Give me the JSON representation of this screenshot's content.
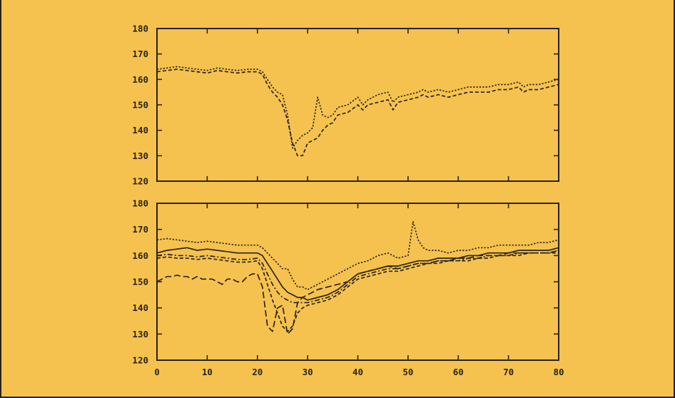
{
  "chart_data": [
    {
      "type": "line",
      "title": "",
      "xlabel": "",
      "ylabel": "",
      "xlim": [
        0,
        80
      ],
      "ylim": [
        120,
        180
      ],
      "yticks": [
        "120",
        "130",
        "140",
        "150",
        "160",
        "170",
        "180"
      ],
      "xticks": [],
      "grid": false,
      "legend": "none",
      "series": [
        {
          "dash": "dotted",
          "x": [
            0,
            2,
            4,
            6,
            8,
            10,
            12,
            14,
            16,
            18,
            20,
            21,
            22,
            23,
            24,
            25,
            26,
            27,
            28,
            29,
            30,
            31,
            32,
            33,
            34,
            35,
            36,
            38,
            40,
            41,
            42,
            44,
            46,
            47,
            48,
            50,
            52,
            53,
            54,
            56,
            58,
            60,
            62,
            64,
            66,
            68,
            70,
            72,
            73,
            74,
            76,
            78,
            80
          ],
          "y": [
            164,
            164.5,
            165,
            164.5,
            164,
            163.5,
            164.5,
            164,
            163.5,
            164,
            164,
            163,
            160,
            157,
            155,
            154,
            146,
            133,
            136,
            138,
            139,
            141,
            153,
            146,
            145,
            146,
            149,
            150,
            153,
            150,
            152,
            154,
            155,
            151,
            153,
            154,
            155,
            156,
            155,
            156,
            155,
            156,
            157,
            157,
            157,
            158,
            158,
            159,
            157,
            158,
            158,
            159,
            160
          ]
        },
        {
          "dash": "dashed",
          "x": [
            0,
            2,
            4,
            6,
            8,
            10,
            12,
            14,
            16,
            18,
            20,
            21,
            22,
            23,
            24,
            25,
            26,
            27,
            28,
            29,
            30,
            31,
            32,
            33,
            34,
            35,
            36,
            38,
            40,
            41,
            42,
            44,
            46,
            47,
            48,
            50,
            52,
            53,
            54,
            56,
            58,
            60,
            62,
            64,
            66,
            68,
            70,
            72,
            73,
            74,
            76,
            78,
            80
          ],
          "y": [
            163,
            163.5,
            164,
            163.5,
            163,
            162.5,
            163.5,
            163,
            162.5,
            163,
            163,
            162,
            158,
            155,
            153,
            150,
            144,
            135,
            130,
            130,
            135,
            136,
            137,
            140,
            142,
            143,
            146,
            147,
            150,
            148,
            150,
            151,
            152,
            148,
            151,
            152,
            153,
            154,
            153,
            154,
            153,
            154,
            155,
            155,
            155,
            156,
            156,
            157,
            155,
            156,
            156,
            157,
            158
          ]
        }
      ]
    },
    {
      "type": "line",
      "title": "",
      "xlabel": "",
      "ylabel": "",
      "xlim": [
        0,
        80
      ],
      "ylim": [
        120,
        180
      ],
      "yticks": [
        "120",
        "130",
        "140",
        "150",
        "160",
        "170",
        "180"
      ],
      "xticks": [
        "0",
        "10",
        "20",
        "30",
        "40",
        "50",
        "60",
        "70",
        "80"
      ],
      "grid": false,
      "legend": "none",
      "series": [
        {
          "dash": "dotted",
          "x": [
            0,
            2,
            4,
            6,
            8,
            10,
            12,
            14,
            16,
            18,
            20,
            21,
            22,
            23,
            24,
            25,
            26,
            27,
            28,
            29,
            30,
            32,
            34,
            36,
            38,
            40,
            42,
            44,
            46,
            48,
            50,
            51,
            52,
            53,
            54,
            56,
            58,
            60,
            62,
            64,
            66,
            68,
            70,
            72,
            74,
            76,
            78,
            80
          ],
          "y": [
            166,
            166.5,
            166,
            165.5,
            165,
            165.5,
            165,
            164.5,
            164,
            164,
            164,
            163,
            161,
            159,
            157,
            155,
            155,
            151,
            148,
            148,
            147,
            149,
            151,
            153,
            155,
            157,
            158,
            160,
            161,
            159,
            160,
            173,
            166,
            163,
            162,
            162,
            161,
            162,
            162,
            163,
            163,
            164,
            164,
            164,
            164,
            165,
            165,
            166
          ]
        },
        {
          "dash": "solid",
          "x": [
            0,
            2,
            4,
            6,
            8,
            10,
            12,
            14,
            16,
            18,
            20,
            21,
            22,
            23,
            24,
            25,
            26,
            27,
            28,
            29,
            30,
            32,
            34,
            36,
            38,
            40,
            42,
            44,
            46,
            48,
            50,
            52,
            54,
            56,
            58,
            60,
            62,
            64,
            66,
            68,
            70,
            72,
            74,
            76,
            78,
            80
          ],
          "y": [
            161,
            162,
            162.5,
            163,
            162,
            162.5,
            162,
            161.5,
            161,
            161,
            161,
            160,
            157,
            154,
            151,
            148,
            146,
            145,
            144,
            144,
            143,
            144,
            145,
            147,
            150,
            153,
            154,
            155,
            156,
            156,
            157,
            158,
            158,
            159,
            159,
            159,
            160,
            160,
            161,
            161,
            161,
            162,
            162,
            162,
            162,
            163
          ]
        },
        {
          "dash": "dashdot",
          "x": [
            0,
            2,
            4,
            6,
            8,
            10,
            12,
            14,
            16,
            18,
            20,
            21,
            22,
            23,
            24,
            25,
            26,
            27,
            28,
            29,
            30,
            32,
            34,
            36,
            38,
            40,
            42,
            44,
            46,
            48,
            50,
            52,
            54,
            56,
            58,
            60,
            62,
            64,
            66,
            68,
            70,
            72,
            74,
            76,
            78,
            80
          ],
          "y": [
            160,
            160.5,
            160,
            160,
            159.5,
            160,
            159.5,
            159,
            158.5,
            158.5,
            159,
            157,
            153,
            149,
            146,
            144,
            143,
            142,
            142,
            142,
            142,
            143,
            144,
            146,
            149,
            152,
            153,
            154,
            155,
            155,
            156,
            157,
            157,
            158,
            158,
            158,
            159,
            159,
            160,
            160,
            160,
            161,
            161,
            161,
            161,
            162
          ]
        },
        {
          "dash": "dashed",
          "x": [
            0,
            2,
            4,
            6,
            8,
            10,
            12,
            14,
            16,
            18,
            20,
            21,
            22,
            23,
            24,
            25,
            26,
            27,
            28,
            29,
            30,
            32,
            34,
            36,
            38,
            40,
            42,
            44,
            46,
            48,
            50,
            52,
            54,
            56,
            58,
            60,
            62,
            64,
            66,
            68,
            70,
            72,
            74,
            76,
            78,
            80
          ],
          "y": [
            159,
            159.5,
            159,
            159,
            158.5,
            159,
            158.5,
            158,
            157.5,
            157.5,
            158,
            155,
            149,
            143,
            138,
            133,
            131,
            133,
            138,
            140,
            141,
            142,
            143,
            145,
            148,
            151,
            152,
            153,
            154,
            154,
            155,
            156,
            157,
            157,
            158,
            158,
            158,
            159,
            159,
            160,
            160,
            160,
            161,
            161,
            161,
            161
          ]
        },
        {
          "dash": "longdash",
          "x": [
            0,
            1,
            2,
            3,
            4,
            5,
            6,
            7,
            8,
            9,
            10,
            11,
            12,
            13,
            14,
            15,
            16,
            17,
            18,
            19,
            20,
            21,
            22,
            23,
            24,
            25,
            26,
            27,
            28,
            29,
            30,
            32,
            34,
            36,
            38,
            40,
            42,
            44,
            46,
            48,
            50,
            52,
            54,
            56,
            58,
            60,
            62,
            64,
            66,
            68,
            70,
            72,
            74,
            76,
            78,
            80
          ],
          "y": [
            150,
            151,
            152,
            152,
            152.5,
            152,
            152,
            151,
            152,
            151,
            151,
            151,
            150,
            149,
            151,
            151,
            150,
            150,
            152,
            153,
            153,
            148,
            133,
            131,
            140,
            141,
            130,
            132,
            142,
            144,
            145,
            147,
            148,
            149,
            150,
            153,
            154,
            155,
            156,
            155,
            156,
            157,
            157,
            158,
            158,
            159,
            159,
            160,
            160,
            160,
            161,
            161,
            161,
            161,
            161,
            162
          ]
        }
      ]
    }
  ]
}
